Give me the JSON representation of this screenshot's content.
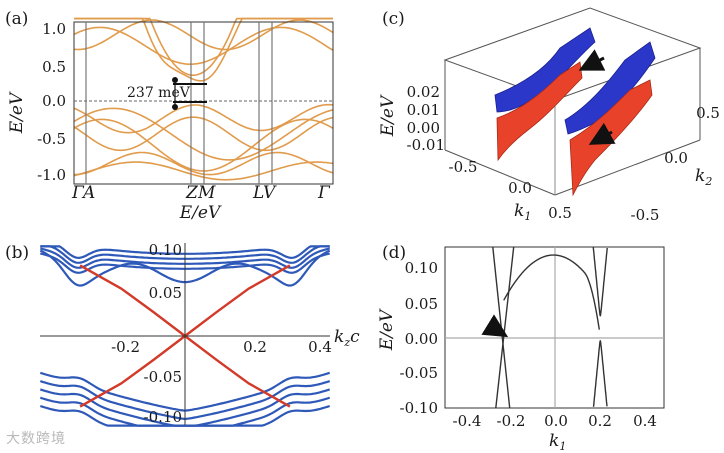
{
  "watermark": "大数跨境",
  "panel_labels": {
    "a": "(a)",
    "b": "(b)",
    "c": "(c)",
    "d": "(d)"
  },
  "colors": {
    "band_orange": "#e19b4c",
    "band_blue": "#2f59b8",
    "band_red": "#d23a2a",
    "line_dark": "#333333",
    "surface_blue": "#2a37c8",
    "surface_red": "#e8432a"
  },
  "chart_data": [
    {
      "id": "a",
      "type": "line",
      "ylabel": "E/eV",
      "xlabel": "E/eV",
      "ylim": [
        -1.1,
        1.1
      ],
      "y_ticks": [
        "1.0",
        "0.5",
        "0.0",
        "-0.5",
        "-1.0"
      ],
      "k_points": [
        "Γ",
        "A",
        "Z",
        "M",
        "L",
        "V",
        "Γ"
      ],
      "k_positions": [
        0,
        0.055,
        0.42,
        0.475,
        0.72,
        0.775,
        1.0
      ],
      "annotation": "237 meV",
      "gap_edges_eV": [
        0.237,
        0.0
      ]
    },
    {
      "id": "b",
      "type": "line",
      "xlabel": "k_z c",
      "xlim": [
        -0.45,
        0.45
      ],
      "ylim": [
        -0.11,
        0.11
      ],
      "x_ticks": [
        "-0.2",
        "0.2",
        "0.4"
      ],
      "y_ticks": [
        "0.10",
        "0.05",
        "-0.05",
        "-0.10"
      ],
      "surface_state": {
        "x": [
          -0.33,
          -0.2,
          -0.1,
          0.0,
          0.1,
          0.2,
          0.33
        ],
        "y": [
          -0.085,
          -0.057,
          -0.029,
          0.0,
          0.029,
          0.057,
          0.085
        ]
      }
    },
    {
      "id": "c",
      "type": "3d-surface",
      "zlabel": "E/eV",
      "xlabel": "k1",
      "ylabel": "k2",
      "z_ticks": [
        "0.02",
        "0.01",
        "0.00",
        "-0.01"
      ],
      "x_ticks": [
        "-0.5",
        "0.0",
        "0.5"
      ],
      "y_ticks": [
        "0.5",
        "0.0",
        "-0.5"
      ]
    },
    {
      "id": "d",
      "type": "line",
      "ylabel": "E/eV",
      "xlabel": "k1",
      "xlim": [
        -0.55,
        0.55
      ],
      "ylim": [
        -0.1,
        0.1
      ],
      "x_ticks": [
        "-0.4",
        "-0.2",
        "0.0",
        "0.2",
        "0.4"
      ],
      "y_ticks": [
        "0.10",
        "0.05",
        "0.00",
        "-0.05",
        "-0.10"
      ],
      "crossing_k1": -0.26,
      "cone_min_k1": 0.23
    }
  ]
}
